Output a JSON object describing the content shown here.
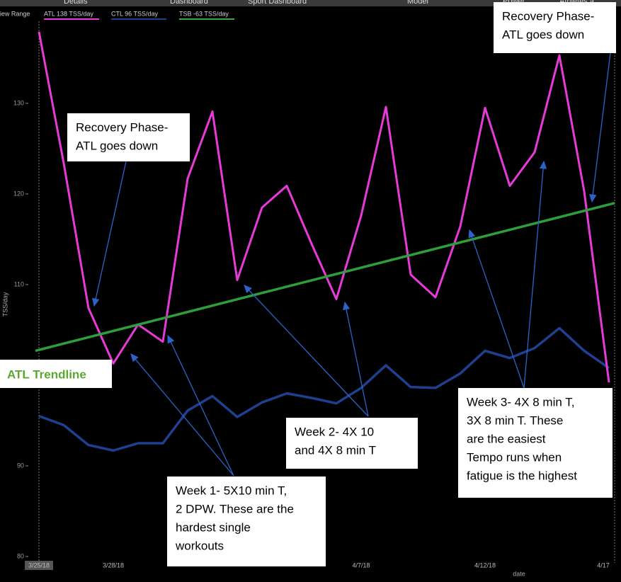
{
  "chart_data": {
    "type": "line",
    "tabs": [
      "Details",
      "Dashboard",
      "Sport Dashboard",
      "Model",
      "Power",
      "Athletes a"
    ],
    "range_label": "View Range",
    "y_label": "TSS/day",
    "x_label": "date",
    "categories": [
      "3/25/18",
      null,
      null,
      "3/28/18",
      null,
      null,
      null,
      null,
      null,
      null,
      null,
      null,
      null,
      "4/7/18",
      null,
      null,
      null,
      null,
      "4/12/18",
      null,
      null,
      null,
      null,
      "4/17"
    ],
    "series": [
      {
        "name": "ATL  138 TSS/day",
        "color": "#e83ad8",
        "values": [
          137.9,
          123.4,
          107.4,
          101.3,
          105.6,
          103.7,
          121.7,
          129.1,
          110.5,
          118.5,
          120.9,
          114.5,
          108.4,
          117.6,
          129.6,
          111.1,
          108.6,
          116.4,
          129.5,
          120.9,
          124.6,
          135.3,
          120.3,
          99.2
        ]
      },
      {
        "name": "CTL  96 TSS/day",
        "color": "#1f3f8f",
        "values": [
          95.5,
          94.5,
          92.3,
          91.7,
          92.5,
          92.5,
          96.1,
          97.7,
          95.4,
          97.0,
          98.0,
          97.5,
          96.9,
          98.6,
          101.1,
          98.7,
          98.6,
          100.2,
          102.7,
          101.9,
          103.0,
          105.2,
          102.7,
          100.8
        ]
      }
    ],
    "extra_legend": [
      {
        "name": "TSB  -63 TSS/day",
        "color": "#3aa845"
      }
    ],
    "trendline": {
      "label": "ATL Trendline",
      "color": "#2e9e3a",
      "values": [
        102.7,
        119.0
      ]
    },
    "ylim": [
      79.3,
      141.4
    ],
    "yticks": [
      80,
      90,
      100,
      110,
      120,
      130
    ],
    "annotations": [
      {
        "lines": [
          "Recovery Phase-",
          "ATL goes down"
        ]
      },
      {
        "lines": [
          "Recovery Phase-",
          "ATL goes down"
        ]
      },
      {
        "lines": [
          "Week 1- 5X10 min T,",
          "2 DPW. These are the",
          "hardest single",
          "workouts"
        ]
      },
      {
        "lines": [
          "Week 2- 4X 10",
          "and 4X 8 min T"
        ]
      },
      {
        "lines": [
          "Week 3- 4X 8 min T,",
          "3X 8 min T. These",
          "are the easiest",
          "Tempo runs when",
          "fatigue is the highest"
        ]
      }
    ]
  }
}
